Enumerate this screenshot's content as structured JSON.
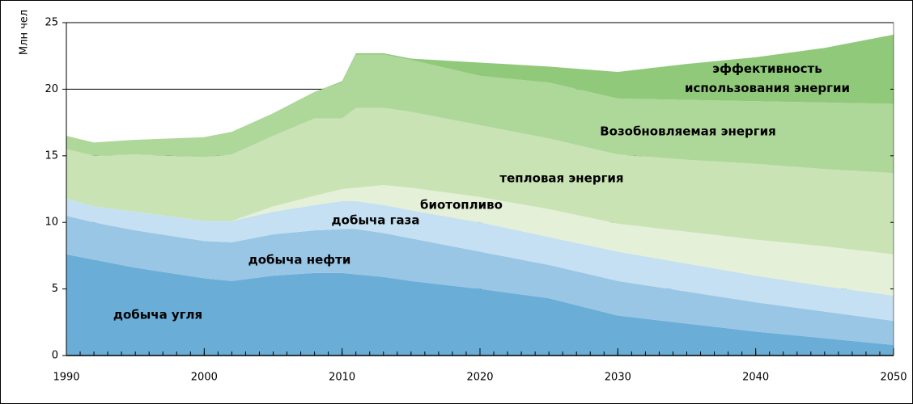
{
  "chart_data": {
    "type": "stacked_area",
    "y_label": "Млн чел",
    "x": [
      1990,
      1992,
      1995,
      2000,
      2002,
      2005,
      2008,
      2010,
      2011,
      2013,
      2015,
      2020,
      2025,
      2030,
      2035,
      2040,
      2045,
      2050
    ],
    "series": [
      {
        "name": "добыча угля",
        "color": "#6aaed8",
        "values": [
          7.6,
          7.2,
          6.6,
          5.8,
          5.6,
          6.0,
          6.2,
          6.2,
          6.1,
          5.9,
          5.6,
          5.0,
          4.3,
          3.0,
          2.4,
          1.8,
          1.3,
          0.8
        ]
      },
      {
        "name": "добыча нефти",
        "color": "#9ac6e6",
        "values": [
          2.9,
          2.8,
          2.8,
          2.8,
          2.9,
          3.1,
          3.2,
          3.3,
          3.4,
          3.3,
          3.2,
          2.8,
          2.5,
          2.6,
          2.4,
          2.2,
          2.0,
          1.8
        ]
      },
      {
        "name": "добыча  газа",
        "color": "#c5e0f2",
        "values": [
          1.3,
          1.2,
          1.4,
          1.5,
          1.6,
          1.7,
          1.9,
          2.1,
          2.1,
          2.1,
          2.1,
          2.2,
          2.1,
          2.2,
          2.1,
          2.0,
          1.9,
          1.9
        ]
      },
      {
        "name": "биотопливо",
        "color": "#e4f0d8",
        "values": [
          0,
          0,
          0,
          0,
          0,
          0.4,
          0.7,
          0.9,
          1.0,
          1.5,
          1.7,
          1.9,
          2.1,
          2.1,
          2.4,
          2.7,
          3.0,
          3.1
        ]
      },
      {
        "name": "тепловая энергия",
        "color": "#c9e3b5",
        "values": [
          3.7,
          3.8,
          4.3,
          4.8,
          5.0,
          5.3,
          5.8,
          5.3,
          6.0,
          5.8,
          5.7,
          5.4,
          5.3,
          5.2,
          5.4,
          5.7,
          5.8,
          6.1
        ]
      },
      {
        "name": "Возобновляемая энергия",
        "color": "#aed79a",
        "values": [
          1.0,
          1.0,
          1.1,
          1.5,
          1.7,
          1.7,
          2.0,
          2.7,
          4.0,
          4.0,
          3.9,
          3.7,
          4.2,
          4.2,
          4.5,
          4.7,
          5.0,
          5.2
        ]
      },
      {
        "name": "эффективность использования энергии",
        "color": "#91c97a",
        "values": [
          0,
          0,
          0,
          0,
          0,
          0,
          0,
          0.1,
          0.1,
          0.1,
          0.1,
          1.0,
          1.2,
          2.0,
          2.7,
          3.3,
          4.1,
          5.2
        ]
      }
    ],
    "xlim": [
      1990,
      2050
    ],
    "xticks": [
      1990,
      2000,
      2010,
      2020,
      2030,
      2040,
      2050
    ],
    "ylim": [
      0,
      25
    ],
    "yticks": [
      0,
      5,
      10,
      15,
      20,
      25
    ]
  }
}
